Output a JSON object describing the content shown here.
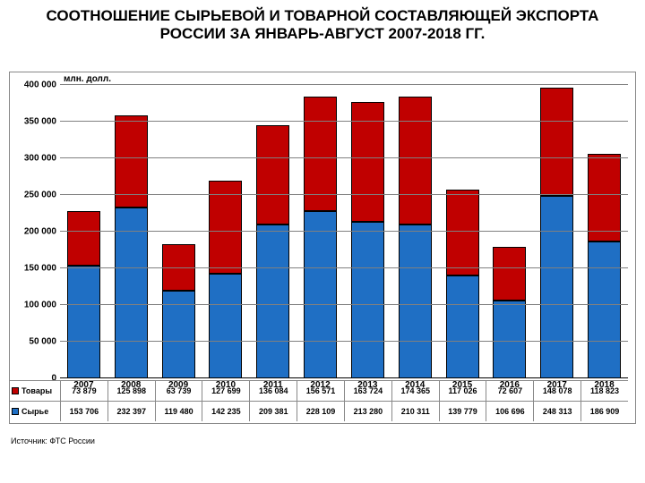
{
  "title": "СООТНОШЕНИЕ СЫРЬЕВОЙ И ТОВАРНОЙ СОСТАВЛЯЮЩЕЙ ЭКСПОРТА РОССИИ ЗА ЯНВАРЬ-АВГУСТ 2007-2018 ГГ.",
  "source": "Источник: ФТС России",
  "chart": {
    "type": "stacked-bar",
    "y_unit": "млн. долл.",
    "ymax": 400000,
    "ytick_step": 50000,
    "yticks": [
      "0",
      "50 000",
      "100 000",
      "150 000",
      "200 000",
      "250 000",
      "300 000",
      "350 000",
      "400 000"
    ],
    "grid_color": "#808080",
    "axis_color": "#000000",
    "background_color": "#ffffff",
    "label_fontsize": 10,
    "categories": [
      "2007",
      "2008",
      "2009",
      "2010",
      "2011",
      "2012",
      "2013",
      "2014",
      "2015",
      "2016",
      "2017",
      "2018"
    ],
    "series": [
      {
        "key": "tovary",
        "label": "Товары",
        "color": "#c00000",
        "values": [
          73879,
          125898,
          63739,
          127699,
          136084,
          156571,
          163724,
          174365,
          117026,
          72607,
          148078,
          118823
        ],
        "display": [
          "73 879",
          "125 898",
          "63 739",
          "127 699",
          "136 084",
          "156 571",
          "163 724",
          "174 365",
          "117 026",
          "72 607",
          "148 078",
          "118 823"
        ]
      },
      {
        "key": "syrie",
        "label": "Сырье",
        "color": "#1f6fc4",
        "values": [
          153706,
          232397,
          119480,
          142235,
          209381,
          228109,
          213280,
          210311,
          139779,
          106696,
          248313,
          186909
        ],
        "display": [
          "153 706",
          "232 397",
          "119 480",
          "142 235",
          "209 381",
          "228 109",
          "213 280",
          "210 311",
          "139 779",
          "106 696",
          "248 313",
          "186 909"
        ]
      }
    ]
  }
}
